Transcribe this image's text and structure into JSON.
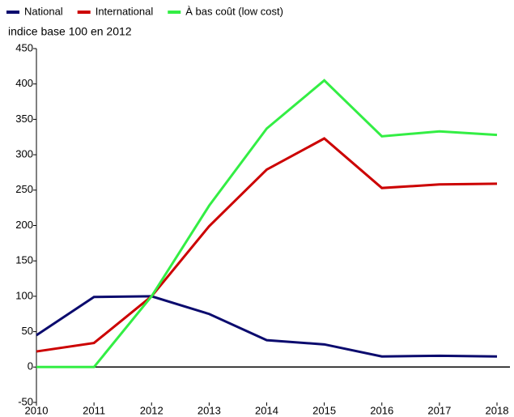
{
  "chart_data": {
    "type": "line",
    "subtitle": "indice base 100 en 2012",
    "x": [
      2010,
      2011,
      2012,
      2013,
      2014,
      2015,
      2016,
      2017,
      2018
    ],
    "series": [
      {
        "name": "National",
        "color": "#0b0b6e",
        "values": [
          45,
          99,
          100,
          75,
          38,
          32,
          15,
          16,
          15
        ]
      },
      {
        "name": "International",
        "color": "#cc0000",
        "values": [
          22,
          34,
          100,
          199,
          279,
          323,
          253,
          258,
          259
        ]
      },
      {
        "name": "À bas coût (low cost)",
        "color": "#33ee44",
        "values": [
          0,
          0,
          100,
          228,
          337,
          405,
          326,
          333,
          328
        ]
      }
    ],
    "xlim": [
      2010,
      2018
    ],
    "xticks": [
      2010,
      2011,
      2012,
      2013,
      2014,
      2015,
      2016,
      2017,
      2018
    ],
    "ylim": [
      -50,
      450
    ],
    "yticks": [
      -50,
      0,
      50,
      100,
      150,
      200,
      250,
      300,
      350,
      400,
      450
    ],
    "zero_line": true,
    "grid": false,
    "legend": "top-left"
  }
}
